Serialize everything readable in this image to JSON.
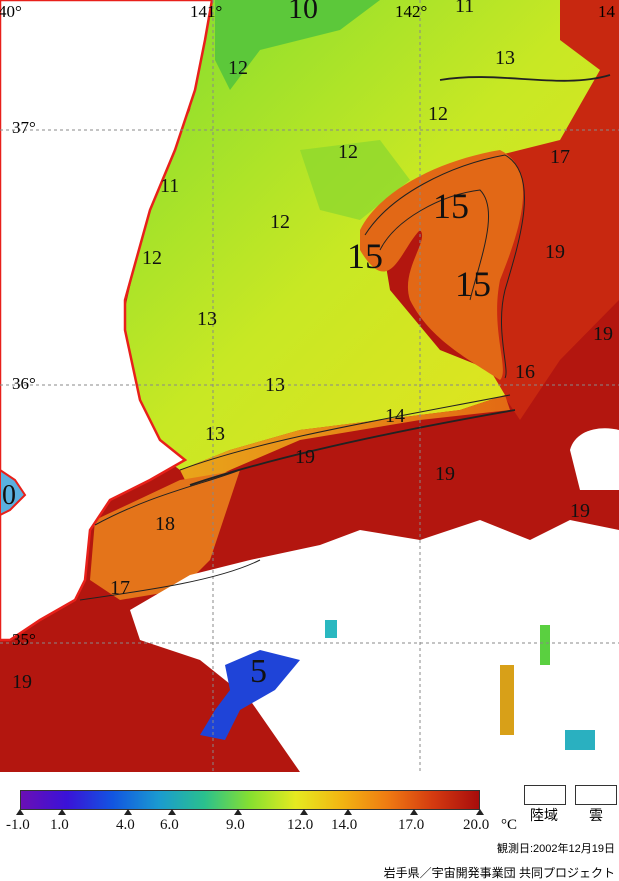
{
  "map": {
    "latitude_labels": [
      "37°",
      "36°",
      "35°"
    ],
    "longitude_labels": [
      "40°",
      "141°",
      "142°",
      "14"
    ],
    "contour_labels": [
      "10",
      "11",
      "11",
      "12",
      "12",
      "12",
      "12",
      "12",
      "13",
      "13",
      "13",
      "13",
      "15",
      "15",
      "15",
      "14",
      "16",
      "19",
      "19",
      "19",
      "17",
      "19",
      "18",
      "17",
      "19",
      "5",
      "0",
      "19"
    ]
  },
  "legend": {
    "colorbar_stops": [
      "#6a0fb5",
      "#3a12d8",
      "#1255e0",
      "#1a9ad0",
      "#2ac08e",
      "#86e030",
      "#e6ea20",
      "#f2b512",
      "#ef7b12",
      "#d43a10",
      "#a80c0c"
    ],
    "tick_labels": [
      "-1.0",
      "1.0",
      "4.0",
      "6.0",
      "9.0",
      "12.0",
      "14.0",
      "17.0",
      "20.0"
    ],
    "unit": "°C",
    "land_label": "陸域",
    "cloud_label": "雲"
  },
  "observation_date": "観測日:2002年12月19日",
  "credit": "岩手県／宇宙開発事業団 共同プロジェクト"
}
